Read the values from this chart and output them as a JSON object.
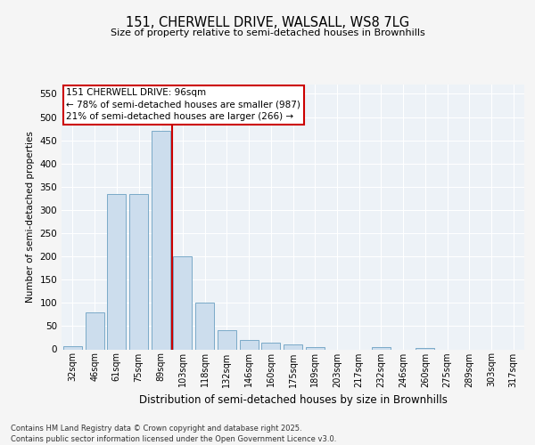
{
  "title_line1": "151, CHERWELL DRIVE, WALSALL, WS8 7LG",
  "title_line2": "Size of property relative to semi-detached houses in Brownhills",
  "xlabel": "Distribution of semi-detached houses by size in Brownhills",
  "ylabel": "Number of semi-detached properties",
  "bar_color": "#ccdded",
  "bar_edge_color": "#7aaac8",
  "categories": [
    "32sqm",
    "46sqm",
    "61sqm",
    "75sqm",
    "89sqm",
    "103sqm",
    "118sqm",
    "132sqm",
    "146sqm",
    "160sqm",
    "175sqm",
    "189sqm",
    "203sqm",
    "217sqm",
    "232sqm",
    "246sqm",
    "260sqm",
    "275sqm",
    "289sqm",
    "303sqm",
    "317sqm"
  ],
  "values": [
    7,
    80,
    335,
    335,
    470,
    200,
    100,
    42,
    20,
    14,
    11,
    4,
    0,
    0,
    4,
    0,
    2,
    0,
    0,
    0,
    0
  ],
  "ylim": [
    0,
    570
  ],
  "yticks": [
    0,
    50,
    100,
    150,
    200,
    250,
    300,
    350,
    400,
    450,
    500,
    550
  ],
  "vline_bar_index": 4,
  "annotation_text": "151 CHERWELL DRIVE: 96sqm\n← 78% of semi-detached houses are smaller (987)\n21% of semi-detached houses are larger (266) →",
  "annotation_box_color": "#ffffff",
  "annotation_border_color": "#cc0000",
  "vline_color": "#cc0000",
  "footer_text": "Contains HM Land Registry data © Crown copyright and database right 2025.\nContains public sector information licensed under the Open Government Licence v3.0.",
  "bg_color": "#edf2f7",
  "grid_color": "#ffffff",
  "fig_bg": "#f5f5f5"
}
